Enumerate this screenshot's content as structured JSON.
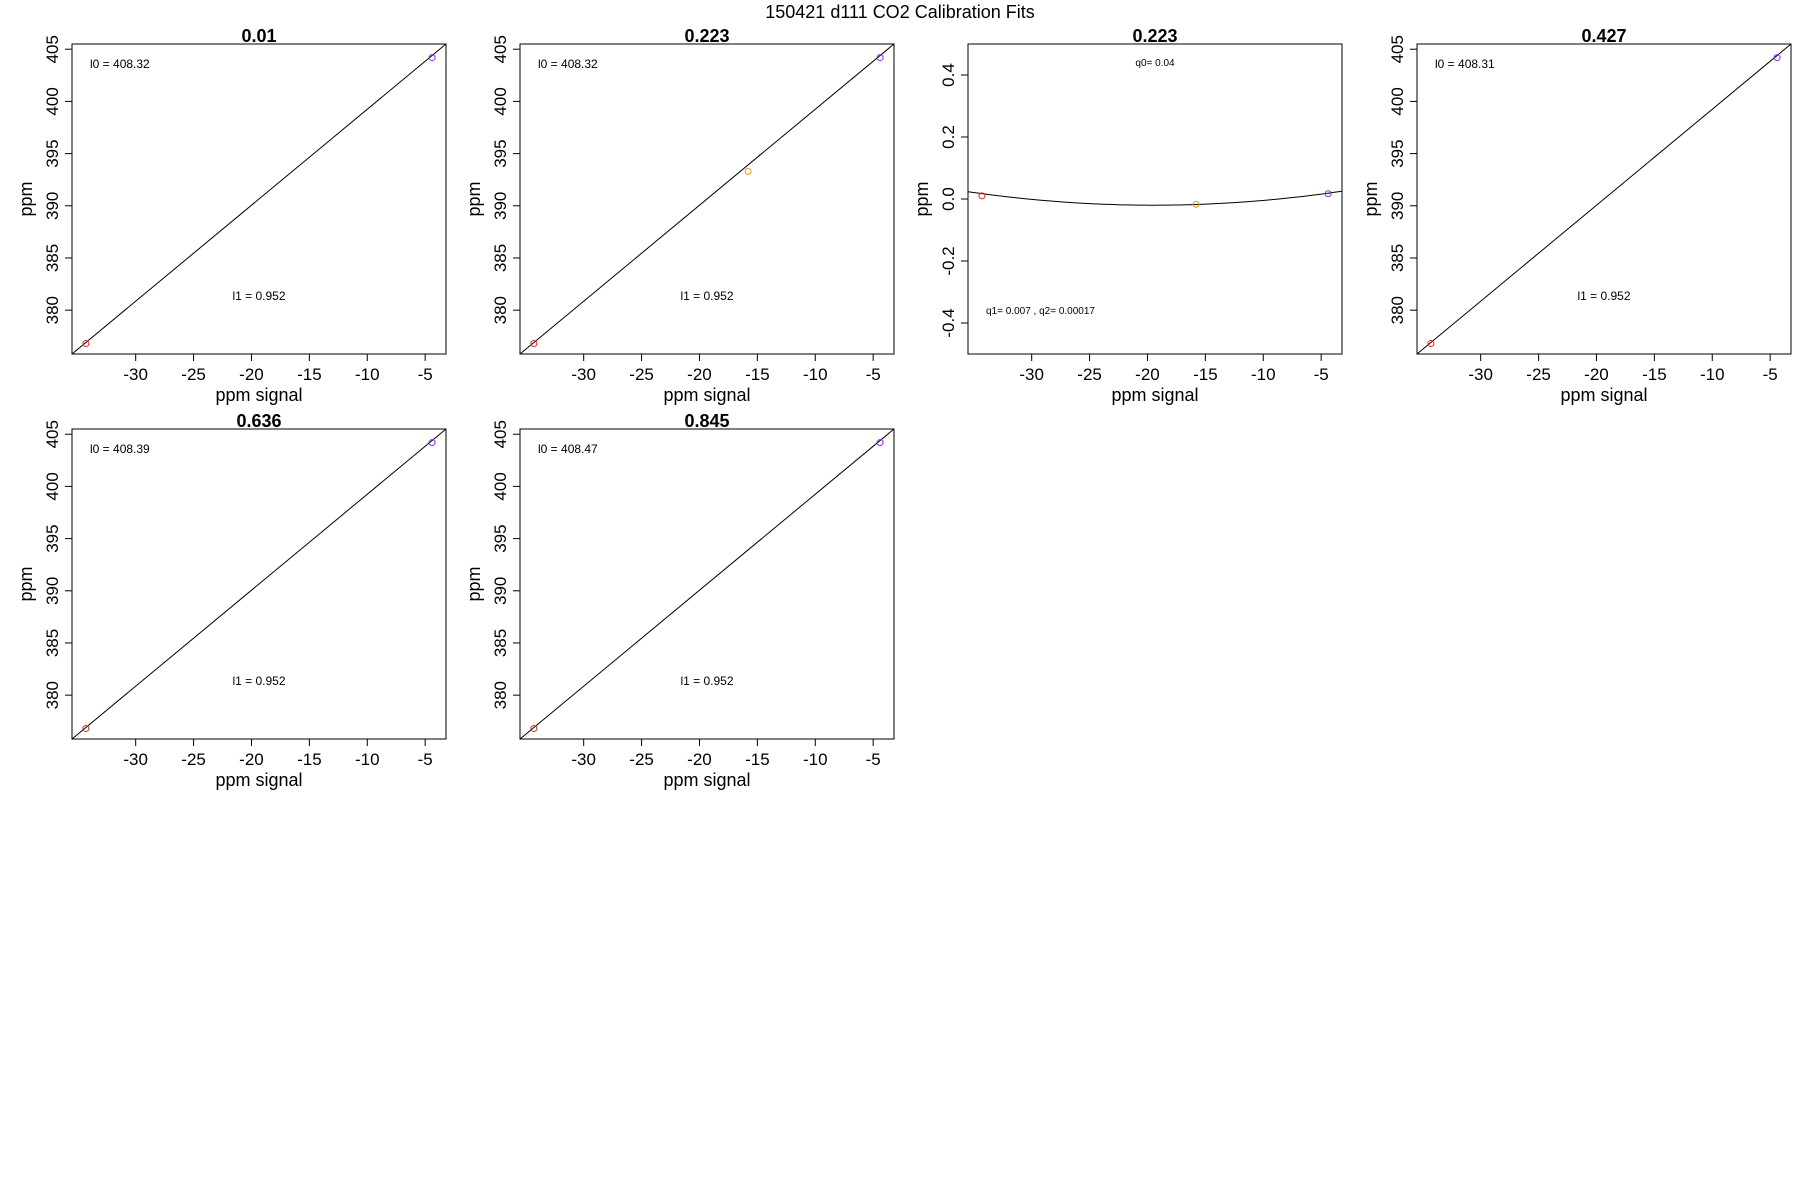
{
  "suptitle": "150421   d111   CO2 Calibration Fits",
  "colors": {
    "low_point": "#dd2a2a",
    "mid_point": "#ee9a1c",
    "high_point": "#8a2be2",
    "line": "#000000"
  },
  "chart_data": [
    {
      "type": "scatter",
      "kind": "linear",
      "title": "0.01",
      "xlabel": "ppm signal",
      "ylabel": "ppm",
      "xlim": [
        -35.5,
        -3.2
      ],
      "ylim": [
        375.8,
        405.5
      ],
      "xticks": [
        -30,
        -25,
        -20,
        -15,
        -10,
        -5
      ],
      "yticks": [
        380,
        385,
        390,
        395,
        400,
        405
      ],
      "points": [
        {
          "x": -34.3,
          "y": 376.8,
          "color": "low_point"
        },
        {
          "x": -4.4,
          "y": 404.2,
          "color": "high_point"
        }
      ],
      "fit": [
        [
          -35.5,
          375.8
        ],
        [
          -3.2,
          405.5
        ]
      ],
      "annotations": [
        {
          "text": "l0 =  408.32",
          "pos": "top-left"
        },
        {
          "text": "l1 =  0.952",
          "pos": "bottom-center"
        }
      ]
    },
    {
      "type": "scatter",
      "kind": "linear",
      "title": "0.223",
      "xlabel": "ppm signal",
      "ylabel": "ppm",
      "xlim": [
        -35.5,
        -3.2
      ],
      "ylim": [
        375.8,
        405.5
      ],
      "xticks": [
        -30,
        -25,
        -20,
        -15,
        -10,
        -5
      ],
      "yticks": [
        380,
        385,
        390,
        395,
        400,
        405
      ],
      "points": [
        {
          "x": -34.3,
          "y": 376.8,
          "color": "low_point"
        },
        {
          "x": -15.8,
          "y": 393.3,
          "color": "mid_point"
        },
        {
          "x": -4.4,
          "y": 404.2,
          "color": "high_point"
        }
      ],
      "fit": [
        [
          -35.5,
          375.8
        ],
        [
          -3.2,
          405.5
        ]
      ],
      "annotations": [
        {
          "text": "l0 =  408.32",
          "pos": "top-left"
        },
        {
          "text": "l1 =  0.952",
          "pos": "bottom-center"
        }
      ]
    },
    {
      "type": "scatter",
      "kind": "residual",
      "title": "0.223",
      "xlabel": "ppm signal",
      "ylabel": "ppm",
      "xlim": [
        -35.5,
        -3.2
      ],
      "ylim": [
        -0.5,
        0.5
      ],
      "xticks": [
        -30,
        -25,
        -20,
        -15,
        -10,
        -5
      ],
      "yticks": [
        -0.4,
        -0.2,
        0.0,
        0.2,
        0.4
      ],
      "points": [
        {
          "x": -34.3,
          "y": 0.01,
          "color": "low_point"
        },
        {
          "x": -15.8,
          "y": -0.017,
          "color": "mid_point"
        },
        {
          "x": -4.4,
          "y": 0.017,
          "color": "high_point"
        }
      ],
      "curve": {
        "vertex_x": -19.5,
        "vertex_y": -0.02,
        "a": 0.00017
      },
      "annotations": [
        {
          "text": "q0= 0.04",
          "pos": "top-center"
        },
        {
          "text": "q1= 0.007 , q2= 0.00017",
          "pos": "bottom-left"
        }
      ]
    },
    {
      "type": "scatter",
      "kind": "linear",
      "title": "0.427",
      "xlabel": "ppm signal",
      "ylabel": "ppm",
      "xlim": [
        -35.5,
        -3.2
      ],
      "ylim": [
        375.8,
        405.5
      ],
      "xticks": [
        -30,
        -25,
        -20,
        -15,
        -10,
        -5
      ],
      "yticks": [
        380,
        385,
        390,
        395,
        400,
        405
      ],
      "points": [
        {
          "x": -34.3,
          "y": 376.8,
          "color": "low_point"
        },
        {
          "x": -4.4,
          "y": 404.2,
          "color": "high_point"
        }
      ],
      "fit": [
        [
          -35.5,
          375.8
        ],
        [
          -3.2,
          405.5
        ]
      ],
      "annotations": [
        {
          "text": "l0 =  408.31",
          "pos": "top-left"
        },
        {
          "text": "l1 =  0.952",
          "pos": "bottom-center"
        }
      ]
    },
    {
      "type": "scatter",
      "kind": "linear",
      "title": "0.636",
      "xlabel": "ppm signal",
      "ylabel": "ppm",
      "xlim": [
        -35.5,
        -3.2
      ],
      "ylim": [
        375.8,
        405.5
      ],
      "xticks": [
        -30,
        -25,
        -20,
        -15,
        -10,
        -5
      ],
      "yticks": [
        380,
        385,
        390,
        395,
        400,
        405
      ],
      "points": [
        {
          "x": -34.3,
          "y": 376.8,
          "color": "low_point"
        },
        {
          "x": -4.4,
          "y": 404.2,
          "color": "high_point"
        }
      ],
      "fit": [
        [
          -35.5,
          375.8
        ],
        [
          -3.2,
          405.5
        ]
      ],
      "annotations": [
        {
          "text": "l0 =  408.39",
          "pos": "top-left"
        },
        {
          "text": "l1 =  0.952",
          "pos": "bottom-center"
        }
      ]
    },
    {
      "type": "scatter",
      "kind": "linear",
      "title": "0.845",
      "xlabel": "ppm signal",
      "ylabel": "ppm",
      "xlim": [
        -35.5,
        -3.2
      ],
      "ylim": [
        375.8,
        405.5
      ],
      "xticks": [
        -30,
        -25,
        -20,
        -15,
        -10,
        -5
      ],
      "yticks": [
        380,
        385,
        390,
        395,
        400,
        405
      ],
      "points": [
        {
          "x": -34.3,
          "y": 376.8,
          "color": "low_point"
        },
        {
          "x": -4.4,
          "y": 404.2,
          "color": "high_point"
        }
      ],
      "fit": [
        [
          -35.5,
          375.8
        ],
        [
          -3.2,
          405.5
        ]
      ],
      "annotations": [
        {
          "text": "l0 =  408.47",
          "pos": "top-left"
        },
        {
          "text": "l1 =  0.952",
          "pos": "bottom-center"
        }
      ]
    }
  ]
}
